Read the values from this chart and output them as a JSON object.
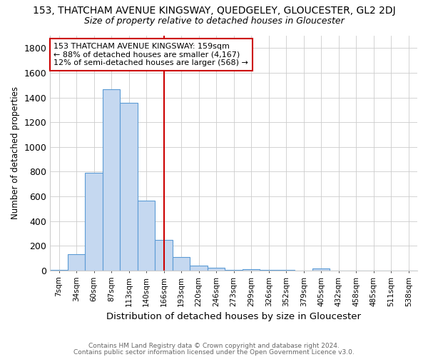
{
  "title_line1": "153, THATCHAM AVENUE KINGSWAY, QUEDGELEY, GLOUCESTER, GL2 2DJ",
  "title_line2": "Size of property relative to detached houses in Gloucester",
  "xlabel": "Distribution of detached houses by size in Gloucester",
  "ylabel": "Number of detached properties",
  "bar_labels": [
    "7sqm",
    "34sqm",
    "60sqm",
    "87sqm",
    "113sqm",
    "140sqm",
    "166sqm",
    "193sqm",
    "220sqm",
    "246sqm",
    "273sqm",
    "299sqm",
    "326sqm",
    "352sqm",
    "379sqm",
    "405sqm",
    "432sqm",
    "458sqm",
    "485sqm",
    "511sqm",
    "538sqm"
  ],
  "bar_values": [
    5,
    133,
    793,
    1469,
    1356,
    568,
    250,
    110,
    37,
    20,
    8,
    10,
    5,
    5,
    0,
    18,
    0,
    0,
    0,
    0,
    0
  ],
  "bar_color": "#c5d8f0",
  "bar_edge_color": "#5b9bd5",
  "grid_color": "#cccccc",
  "vline_x": 6,
  "vline_color": "#cc0000",
  "annotation_text": "153 THATCHAM AVENUE KINGSWAY: 159sqm\n← 88% of detached houses are smaller (4,167)\n12% of semi-detached houses are larger (568) →",
  "annotation_box_color": "#ffffff",
  "annotation_box_edge": "#cc0000",
  "footnote1": "Contains HM Land Registry data © Crown copyright and database right 2024.",
  "footnote2": "Contains public sector information licensed under the Open Government Licence v3.0.",
  "ylim": [
    0,
    1900
  ],
  "yticks": [
    0,
    200,
    400,
    600,
    800,
    1000,
    1200,
    1400,
    1600,
    1800
  ],
  "background_color": "#ffffff",
  "title1_fontsize": 10,
  "title2_fontsize": 9
}
